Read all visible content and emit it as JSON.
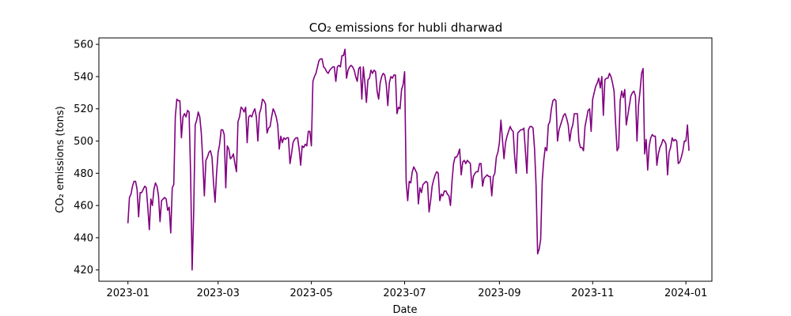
{
  "chart_data": {
    "type": "line",
    "title": "CO₂ emissions for hubli dharwad",
    "xlabel": "Date",
    "ylabel": "CO₂ emissions (tons)",
    "line_color": "#800080",
    "x_start": "2023-01-01",
    "x_end": "2023-12-31",
    "xlim": [
      "2022-12-13",
      "2024-01-18"
    ],
    "ylim": [
      413,
      564
    ],
    "x_ticks": [
      "2023-01-01",
      "2023-03-01",
      "2023-05-01",
      "2023-07-01",
      "2023-09-01",
      "2023-11-01",
      "2024-01-01"
    ],
    "x_tick_labels": [
      "2023-01",
      "2023-03",
      "2023-05",
      "2023-07",
      "2023-09",
      "2023-11",
      "2024-01"
    ],
    "y_ticks": [
      420,
      440,
      460,
      480,
      500,
      520,
      540,
      560
    ],
    "y_tick_labels": [
      "420",
      "440",
      "460",
      "480",
      "500",
      "520",
      "540",
      "560"
    ],
    "grid": false,
    "series": [
      {
        "values": [
          449,
          465,
          467,
          472,
          475,
          475,
          470,
          453,
          468,
          468,
          470,
          472,
          471,
          459,
          445,
          464,
          460,
          470,
          474,
          472,
          466,
          450,
          463,
          464,
          465,
          464,
          457,
          459,
          443,
          471,
          473,
          515,
          526,
          525,
          525,
          502,
          515,
          517,
          515,
          519,
          518,
          480,
          420,
          455,
          510,
          513,
          518,
          515,
          505,
          487,
          466,
          488,
          490,
          493,
          494,
          490,
          474,
          462,
          480,
          493,
          498,
          507,
          507,
          504,
          471,
          497,
          495,
          489,
          490,
          492,
          486,
          481,
          512,
          515,
          521,
          520,
          518,
          521,
          499,
          515,
          516,
          515,
          518,
          520,
          515,
          500,
          517,
          520,
          526,
          525,
          523,
          505,
          508,
          509,
          515,
          520,
          518,
          515,
          510,
          495,
          503,
          499,
          502,
          501,
          502,
          502,
          486,
          492,
          499,
          501,
          502,
          502,
          495,
          485,
          497,
          496,
          498,
          497,
          506,
          506,
          497,
          537,
          540,
          542,
          546,
          550,
          551,
          551,
          546,
          545,
          543,
          542,
          544,
          545,
          546,
          546,
          537,
          546,
          547,
          546,
          553,
          553,
          557,
          539,
          544,
          546,
          547,
          546,
          544,
          540,
          537,
          545,
          546,
          526,
          546,
          536,
          524,
          538,
          539,
          544,
          542,
          544,
          543,
          531,
          526,
          536,
          540,
          542,
          541,
          535,
          522,
          536,
          540,
          539,
          541,
          541,
          517,
          521,
          520,
          532,
          535,
          543,
          475,
          463,
          475,
          474,
          481,
          484,
          482,
          480,
          461,
          471,
          468,
          473,
          474,
          475,
          474,
          456,
          463,
          472,
          476,
          479,
          481,
          480,
          463,
          467,
          466,
          469,
          469,
          467,
          466,
          460,
          475,
          486,
          490,
          490,
          492,
          495,
          479,
          487,
          488,
          486,
          488,
          487,
          486,
          471,
          478,
          480,
          481,
          481,
          486,
          486,
          472,
          477,
          478,
          479,
          478,
          478,
          466,
          478,
          480,
          490,
          493,
          499,
          513,
          501,
          489,
          499,
          503,
          506,
          509,
          507,
          506,
          490,
          480,
          505,
          506,
          507,
          507,
          508,
          494,
          480,
          507,
          509,
          509,
          508,
          495,
          472,
          430,
          433,
          439,
          475,
          488,
          496,
          494,
          510,
          512,
          520,
          525,
          526,
          525,
          500,
          507,
          510,
          513,
          516,
          517,
          514,
          510,
          500,
          507,
          510,
          517,
          517,
          517,
          500,
          496,
          496,
          494,
          509,
          514,
          519,
          520,
          506,
          526,
          530,
          534,
          536,
          539,
          533,
          540,
          516,
          538,
          539,
          539,
          542,
          540,
          536,
          531,
          511,
          494,
          496,
          525,
          531,
          527,
          532,
          510,
          516,
          522,
          528,
          530,
          531,
          528,
          500,
          522,
          531,
          542,
          545,
          492,
          501,
          482,
          497,
          502,
          504,
          503,
          503,
          485,
          492,
          496,
          498,
          501,
          500,
          498,
          479,
          493,
          496,
          502,
          500,
          501,
          500,
          486,
          487,
          490,
          494,
          500,
          500,
          510,
          494
        ]
      }
    ]
  }
}
